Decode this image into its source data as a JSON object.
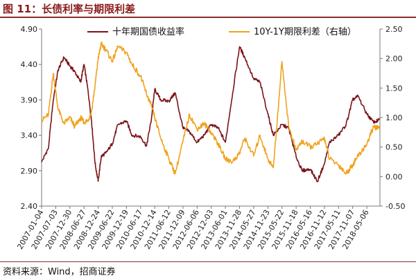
{
  "title": "图 11：长债利率与期限利差",
  "source": "资料来源：Wind，招商证券",
  "colors": {
    "maroon": "#7a1218",
    "orange": "#f0a21e",
    "accent": "#8b2a2a"
  },
  "chart_data": {
    "type": "line",
    "title": "",
    "xlabel": "",
    "ylabel": "",
    "left_axis": {
      "ylim": [
        2.4,
        4.9
      ],
      "ticks": [
        "4.90",
        "4.40",
        "3.90",
        "3.40",
        "2.90",
        "2.40"
      ]
    },
    "right_axis": {
      "ylim": [
        -0.5,
        2.5
      ],
      "ticks": [
        "2.50",
        "2.00",
        "1.50",
        "1.00",
        "0.50",
        "0.00",
        "-0.50"
      ]
    },
    "x_ticks": [
      "2007-01-04",
      "2007-07-03",
      "2007-12-30",
      "2008-06-27",
      "2008-12-24",
      "2009-06-22",
      "2009-12-19",
      "2010-06-17",
      "2010-12-14",
      "2011-06-12",
      "2011-12-09",
      "2012-06-06",
      "2012-12-03",
      "2013-06-01",
      "2013-11-28",
      "2014-05-27",
      "2014-11-23",
      "2015-05-22",
      "2015-11-18",
      "2016-05-16",
      "2016-11-12",
      "2017-05-11",
      "2017-11-07",
      "2018-05-06"
    ],
    "legend_position": "top",
    "grid": false,
    "series": [
      {
        "name": "十年期国债收益率",
        "axis": "left",
        "color": "#7a1218",
        "x": [
          "2007-01-04",
          "2007-04-01",
          "2007-06-01",
          "2007-08-01",
          "2007-10-15",
          "2007-12-30",
          "2008-03-01",
          "2008-05-15",
          "2008-06-27",
          "2008-08-15",
          "2008-10-01",
          "2008-11-15",
          "2008-12-24",
          "2009-02-01",
          "2009-04-01",
          "2009-06-22",
          "2009-09-01",
          "2009-12-19",
          "2010-03-01",
          "2010-06-17",
          "2010-09-01",
          "2010-11-01",
          "2010-12-14",
          "2011-03-01",
          "2011-06-12",
          "2011-09-01",
          "2011-12-09",
          "2012-03-01",
          "2012-06-06",
          "2012-09-01",
          "2012-12-03",
          "2013-03-01",
          "2013-06-01",
          "2013-09-01",
          "2013-11-28",
          "2014-02-01",
          "2014-05-27",
          "2014-08-15",
          "2014-11-23",
          "2015-02-01",
          "2015-05-22",
          "2015-08-15",
          "2015-11-18",
          "2016-02-01",
          "2016-05-16",
          "2016-08-15",
          "2016-11-12",
          "2017-01-15",
          "2017-05-11",
          "2017-08-15",
          "2017-11-07",
          "2018-01-15",
          "2018-05-06",
          "2018-08-01",
          "2018-10-15"
        ],
        "values": [
          3.02,
          3.22,
          3.9,
          4.32,
          4.5,
          4.38,
          4.3,
          4.15,
          4.4,
          4.05,
          3.6,
          3.0,
          2.75,
          3.1,
          3.15,
          3.28,
          3.55,
          3.6,
          3.4,
          3.38,
          3.25,
          3.62,
          4.05,
          3.9,
          3.88,
          4.0,
          3.5,
          3.45,
          3.3,
          3.4,
          3.55,
          3.5,
          3.3,
          4.0,
          4.65,
          4.5,
          4.2,
          4.15,
          3.7,
          3.4,
          3.55,
          3.5,
          3.1,
          2.9,
          2.92,
          2.75,
          3.0,
          3.3,
          3.4,
          3.55,
          3.9,
          3.95,
          3.7,
          3.58,
          3.62
        ]
      },
      {
        "name": "10Y-1Y期限利差（右轴）",
        "axis": "right",
        "color": "#f0a21e",
        "x": [
          "2007-01-04",
          "2007-04-01",
          "2007-06-01",
          "2007-08-01",
          "2007-10-15",
          "2007-12-30",
          "2008-03-01",
          "2008-05-15",
          "2008-06-27",
          "2008-08-15",
          "2008-10-01",
          "2008-11-15",
          "2008-12-24",
          "2009-02-01",
          "2009-04-01",
          "2009-06-22",
          "2009-09-01",
          "2009-12-19",
          "2010-03-01",
          "2010-06-17",
          "2010-09-01",
          "2010-11-01",
          "2010-12-14",
          "2011-03-01",
          "2011-06-12",
          "2011-09-01",
          "2011-12-09",
          "2012-03-01",
          "2012-06-06",
          "2012-09-01",
          "2012-12-03",
          "2013-03-01",
          "2013-06-01",
          "2013-09-01",
          "2013-11-28",
          "2014-02-01",
          "2014-05-27",
          "2014-08-15",
          "2014-11-23",
          "2015-02-01",
          "2015-05-22",
          "2015-08-15",
          "2015-11-18",
          "2016-02-01",
          "2016-05-16",
          "2016-08-15",
          "2016-11-12",
          "2017-01-15",
          "2017-05-11",
          "2017-08-15",
          "2017-11-07",
          "2018-01-15",
          "2018-05-06",
          "2018-08-01",
          "2018-10-15"
        ],
        "values": [
          0.95,
          1.05,
          1.75,
          1.15,
          0.9,
          1.0,
          0.85,
          1.0,
          0.92,
          0.95,
          1.1,
          1.55,
          2.0,
          2.25,
          2.15,
          1.95,
          2.2,
          2.1,
          1.9,
          1.7,
          1.4,
          1.2,
          1.0,
          0.65,
          0.3,
          0.05,
          0.6,
          1.05,
          0.8,
          0.9,
          0.75,
          0.55,
          0.3,
          0.25,
          0.4,
          0.65,
          0.35,
          0.7,
          0.3,
          0.15,
          1.95,
          0.85,
          0.45,
          0.6,
          0.5,
          0.55,
          0.65,
          0.3,
          0.2,
          0.05,
          0.2,
          0.35,
          0.55,
          0.85,
          0.8
        ]
      }
    ]
  }
}
